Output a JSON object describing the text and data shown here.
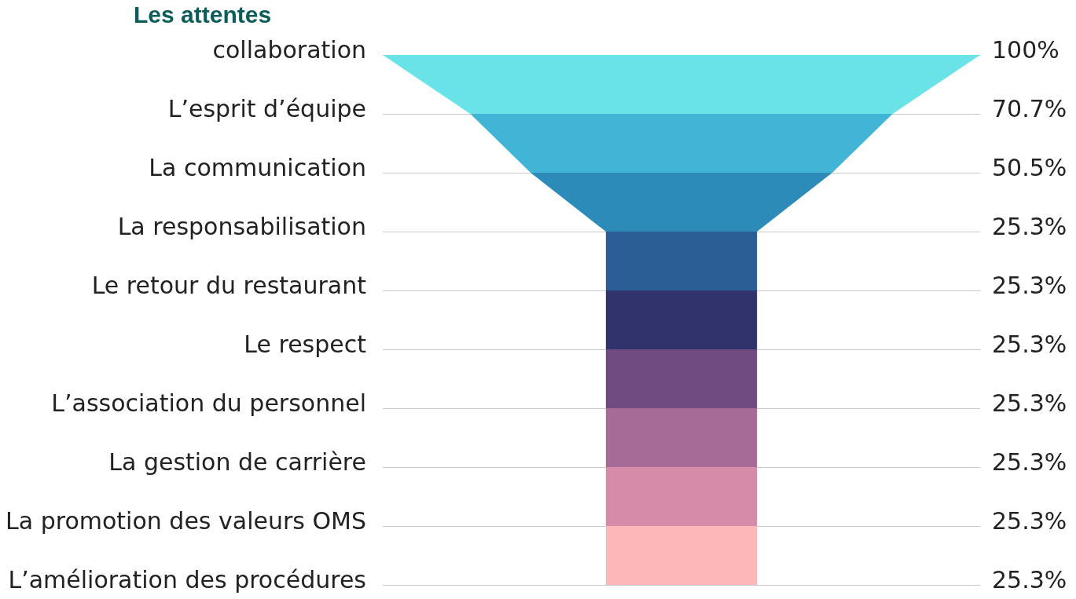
{
  "chart_data": {
    "type": "other",
    "title": "Les attentes",
    "categories": [
      "collaboration",
      "L’esprit d’équipe",
      "La communication",
      "La responsabilisation",
      "Le retour du restaurant",
      "Le respect",
      "L’association du personnel",
      "La gestion de carrière",
      "La promotion des valeurs OMS",
      "L’amélioration des procédures"
    ],
    "values": [
      100,
      70.7,
      50.5,
      25.3,
      25.3,
      25.3,
      25.3,
      25.3,
      25.3,
      25.3
    ],
    "value_labels": [
      "100%",
      "70.7%",
      "50.5%",
      "25.3%",
      "25.3%",
      "25.3%",
      "25.3%",
      "25.3%",
      "25.3%",
      "25.3%"
    ],
    "colors": [
      "#6ae3e8",
      "#42b5d6",
      "#2c8bb9",
      "#2b5e95",
      "#31336c",
      "#6e4c82",
      "#a66b96",
      "#d68ca8",
      "#feb7b9",
      "#feb7b9"
    ]
  }
}
